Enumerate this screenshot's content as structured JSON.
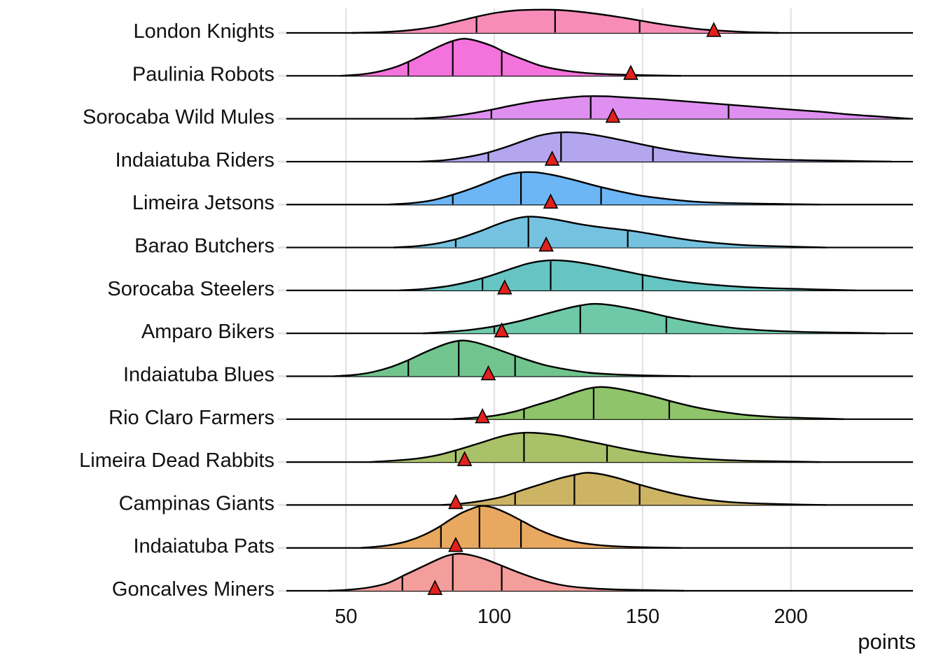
{
  "chart_data": {
    "type": "area",
    "variant": "ridgeline-density",
    "title": "",
    "xlabel": "points",
    "x_ticks": [
      50,
      100,
      150,
      200
    ],
    "xlim": [
      30,
      240
    ],
    "grid": "vertical-major-only",
    "grid_color": "#e4e4e4",
    "outline_color": "#000000",
    "marker_shape": "triangle-up",
    "marker_color": "#e2201c",
    "teams": [
      {
        "name": "London Knights",
        "color": "#f88cb9",
        "quartiles": [
          94,
          120.5,
          149
        ],
        "observed": 174,
        "density": [
          [
            52,
            0
          ],
          [
            62,
            1
          ],
          [
            72,
            4
          ],
          [
            80,
            9
          ],
          [
            88,
            17
          ],
          [
            95,
            24
          ],
          [
            101,
            29
          ],
          [
            107,
            32
          ],
          [
            113,
            33
          ],
          [
            120,
            33
          ],
          [
            127,
            31
          ],
          [
            135,
            27
          ],
          [
            143,
            22
          ],
          [
            150,
            17
          ],
          [
            157,
            12
          ],
          [
            164,
            8
          ],
          [
            170,
            5
          ],
          [
            177,
            3
          ],
          [
            186,
            1
          ],
          [
            196,
            0
          ]
        ]
      },
      {
        "name": "Paulinia Robots",
        "color": "#f472dc",
        "quartiles": [
          71,
          86,
          102.5
        ],
        "observed": 146,
        "density": [
          [
            48,
            0
          ],
          [
            55,
            2
          ],
          [
            61,
            6
          ],
          [
            67,
            13
          ],
          [
            73,
            24
          ],
          [
            78,
            35
          ],
          [
            83,
            45
          ],
          [
            87,
            51
          ],
          [
            90,
            53
          ],
          [
            94,
            50
          ],
          [
            99,
            43
          ],
          [
            104,
            33
          ],
          [
            110,
            23
          ],
          [
            116,
            14
          ],
          [
            123,
            8
          ],
          [
            131,
            4
          ],
          [
            140,
            2
          ],
          [
            151,
            0.8
          ],
          [
            163,
            0
          ]
        ]
      },
      {
        "name": "Sorocaba Wild Mules",
        "color": "#de8ff0",
        "quartiles": [
          99,
          132.5,
          179
        ],
        "observed": 140,
        "density": [
          [
            73,
            0
          ],
          [
            82,
            2
          ],
          [
            90,
            6
          ],
          [
            98,
            12
          ],
          [
            106,
            19
          ],
          [
            114,
            25
          ],
          [
            122,
            29
          ],
          [
            130,
            32
          ],
          [
            138,
            32
          ],
          [
            146,
            30
          ],
          [
            155,
            28
          ],
          [
            164,
            25
          ],
          [
            173,
            22
          ],
          [
            182,
            19
          ],
          [
            191,
            16
          ],
          [
            200,
            13
          ],
          [
            210,
            10
          ],
          [
            220,
            6
          ],
          [
            230,
            3
          ],
          [
            240,
            0
          ]
        ]
      },
      {
        "name": "Indaiatuba Riders",
        "color": "#b3a6ef",
        "quartiles": [
          98,
          122.5,
          153.5
        ],
        "observed": 119.5,
        "density": [
          [
            75,
            0
          ],
          [
            83,
            2
          ],
          [
            90,
            6
          ],
          [
            97,
            12
          ],
          [
            104,
            21
          ],
          [
            110,
            30
          ],
          [
            115,
            37
          ],
          [
            120,
            41
          ],
          [
            125,
            42
          ],
          [
            131,
            40
          ],
          [
            138,
            35
          ],
          [
            146,
            28
          ],
          [
            154,
            21
          ],
          [
            162,
            15
          ],
          [
            171,
            10
          ],
          [
            181,
            6
          ],
          [
            192,
            3.5
          ],
          [
            205,
            2
          ],
          [
            220,
            1
          ],
          [
            234,
            0
          ]
        ]
      },
      {
        "name": "Limeira Jetsons",
        "color": "#6cb6f5",
        "quartiles": [
          86,
          109,
          136
        ],
        "observed": 119,
        "density": [
          [
            64,
            0
          ],
          [
            72,
            2
          ],
          [
            79,
            6
          ],
          [
            86,
            14
          ],
          [
            93,
            24
          ],
          [
            99,
            34
          ],
          [
            104,
            42
          ],
          [
            109,
            46
          ],
          [
            114,
            46
          ],
          [
            120,
            42
          ],
          [
            127,
            35
          ],
          [
            134,
            27
          ],
          [
            141,
            20
          ],
          [
            149,
            13
          ],
          [
            158,
            8
          ],
          [
            168,
            4
          ],
          [
            180,
            2
          ],
          [
            194,
            1
          ],
          [
            210,
            0
          ]
        ]
      },
      {
        "name": "Barao Butchers",
        "color": "#74c2e0",
        "quartiles": [
          87,
          111.5,
          145
        ],
        "observed": 117.5,
        "density": [
          [
            66,
            0
          ],
          [
            74,
            2
          ],
          [
            81,
            6
          ],
          [
            88,
            13
          ],
          [
            95,
            23
          ],
          [
            101,
            33
          ],
          [
            106,
            40
          ],
          [
            111,
            44
          ],
          [
            116,
            43
          ],
          [
            122,
            39
          ],
          [
            128,
            34
          ],
          [
            134,
            30
          ],
          [
            140,
            27
          ],
          [
            146,
            24
          ],
          [
            152,
            20
          ],
          [
            159,
            15
          ],
          [
            167,
            10
          ],
          [
            176,
            6
          ],
          [
            186,
            3
          ],
          [
            198,
            1.5
          ],
          [
            212,
            0
          ]
        ]
      },
      {
        "name": "Sorocaba Steelers",
        "color": "#66c5c3",
        "quartiles": [
          96,
          119,
          150
        ],
        "observed": 103.5,
        "density": [
          [
            68,
            0
          ],
          [
            76,
            2
          ],
          [
            84,
            6
          ],
          [
            91,
            12
          ],
          [
            98,
            20
          ],
          [
            105,
            30
          ],
          [
            111,
            38
          ],
          [
            116,
            42
          ],
          [
            121,
            43
          ],
          [
            127,
            41
          ],
          [
            134,
            36
          ],
          [
            141,
            30
          ],
          [
            149,
            23
          ],
          [
            157,
            17
          ],
          [
            165,
            12
          ],
          [
            174,
            8
          ],
          [
            184,
            5
          ],
          [
            195,
            3
          ],
          [
            208,
            1.5
          ],
          [
            222,
            0
          ]
        ]
      },
      {
        "name": "Amparo Bikers",
        "color": "#6ec9a8",
        "quartiles": [
          100,
          129,
          158
        ],
        "observed": 102.5,
        "density": [
          [
            76,
            0
          ],
          [
            84,
            2
          ],
          [
            92,
            5
          ],
          [
            100,
            10
          ],
          [
            108,
            17
          ],
          [
            115,
            25
          ],
          [
            122,
            33
          ],
          [
            128,
            39
          ],
          [
            133,
            42
          ],
          [
            138,
            41
          ],
          [
            144,
            37
          ],
          [
            151,
            31
          ],
          [
            158,
            24
          ],
          [
            165,
            18
          ],
          [
            173,
            12
          ],
          [
            182,
            7
          ],
          [
            192,
            4
          ],
          [
            204,
            2
          ],
          [
            218,
            1
          ],
          [
            232,
            0
          ]
        ]
      },
      {
        "name": "Indaiatuba Blues",
        "color": "#72c48e",
        "quartiles": [
          71,
          88,
          107
        ],
        "observed": 98,
        "density": [
          [
            46,
            0
          ],
          [
            53,
            2
          ],
          [
            59,
            6
          ],
          [
            65,
            13
          ],
          [
            71,
            23
          ],
          [
            76,
            33
          ],
          [
            81,
            42
          ],
          [
            85,
            48
          ],
          [
            89,
            51
          ],
          [
            93,
            49
          ],
          [
            98,
            43
          ],
          [
            104,
            34
          ],
          [
            110,
            25
          ],
          [
            117,
            16
          ],
          [
            124,
            10
          ],
          [
            132,
            5
          ],
          [
            141,
            2.5
          ],
          [
            152,
            1
          ],
          [
            166,
            0
          ]
        ]
      },
      {
        "name": "Rio Claro Farmers",
        "color": "#8fc46a",
        "quartiles": [
          110,
          133.5,
          159
        ],
        "observed": 96,
        "density": [
          [
            86,
            0
          ],
          [
            93,
            2
          ],
          [
            100,
            5
          ],
          [
            107,
            11
          ],
          [
            114,
            20
          ],
          [
            121,
            29
          ],
          [
            127,
            38
          ],
          [
            132,
            44
          ],
          [
            136,
            46
          ],
          [
            141,
            44
          ],
          [
            147,
            39
          ],
          [
            154,
            32
          ],
          [
            161,
            24
          ],
          [
            168,
            17
          ],
          [
            176,
            11
          ],
          [
            185,
            6
          ],
          [
            195,
            3
          ],
          [
            206,
            1.5
          ],
          [
            218,
            0
          ]
        ]
      },
      {
        "name": "Limeira Dead Rabbits",
        "color": "#a9c169",
        "quartiles": [
          87,
          110,
          138
        ],
        "observed": 90,
        "density": [
          [
            58,
            0
          ],
          [
            66,
            2
          ],
          [
            74,
            5
          ],
          [
            81,
            10
          ],
          [
            88,
            18
          ],
          [
            95,
            27
          ],
          [
            101,
            35
          ],
          [
            106,
            40
          ],
          [
            111,
            42
          ],
          [
            116,
            41
          ],
          [
            122,
            38
          ],
          [
            129,
            32
          ],
          [
            136,
            26
          ],
          [
            144,
            19
          ],
          [
            152,
            13
          ],
          [
            161,
            8
          ],
          [
            171,
            4.5
          ],
          [
            183,
            2
          ],
          [
            196,
            1
          ],
          [
            210,
            0
          ]
        ]
      },
      {
        "name": "Campinas Giants",
        "color": "#cdb465",
        "quartiles": [
          107,
          127,
          149
        ],
        "observed": 87,
        "density": [
          [
            82,
            0
          ],
          [
            89,
            2
          ],
          [
            96,
            6
          ],
          [
            103,
            12
          ],
          [
            110,
            22
          ],
          [
            116,
            30
          ],
          [
            122,
            38
          ],
          [
            127,
            43
          ],
          [
            131,
            46
          ],
          [
            136,
            44
          ],
          [
            142,
            38
          ],
          [
            149,
            29
          ],
          [
            156,
            21
          ],
          [
            163,
            14
          ],
          [
            171,
            8
          ],
          [
            180,
            4
          ],
          [
            190,
            2
          ],
          [
            201,
            0.8
          ],
          [
            212,
            0
          ]
        ]
      },
      {
        "name": "Indaiatuba Pats",
        "color": "#e8a860",
        "quartiles": [
          82,
          95,
          109
        ],
        "observed": 87,
        "density": [
          [
            55,
            0
          ],
          [
            61,
            2
          ],
          [
            66,
            5
          ],
          [
            71,
            10
          ],
          [
            76,
            18
          ],
          [
            81,
            29
          ],
          [
            85,
            40
          ],
          [
            89,
            50
          ],
          [
            93,
            57
          ],
          [
            96,
            60
          ],
          [
            100,
            57
          ],
          [
            105,
            48
          ],
          [
            110,
            37
          ],
          [
            115,
            26
          ],
          [
            121,
            16
          ],
          [
            127,
            9
          ],
          [
            134,
            4.5
          ],
          [
            142,
            2
          ],
          [
            152,
            0.8
          ],
          [
            163,
            0
          ]
        ]
      },
      {
        "name": "Goncalves Miners",
        "color": "#f49e9b",
        "quartiles": [
          69,
          86,
          102.5
        ],
        "observed": 80,
        "density": [
          [
            44,
            0
          ],
          [
            51,
            1.5
          ],
          [
            58,
            5
          ],
          [
            64,
            11
          ],
          [
            70,
            23
          ],
          [
            75,
            33
          ],
          [
            80,
            43
          ],
          [
            84,
            50
          ],
          [
            88,
            53
          ],
          [
            92,
            51
          ],
          [
            97,
            45
          ],
          [
            103,
            35
          ],
          [
            109,
            25
          ],
          [
            116,
            15
          ],
          [
            123,
            8
          ],
          [
            131,
            4
          ],
          [
            140,
            2
          ],
          [
            151,
            1
          ],
          [
            164,
            0
          ]
        ]
      }
    ]
  }
}
